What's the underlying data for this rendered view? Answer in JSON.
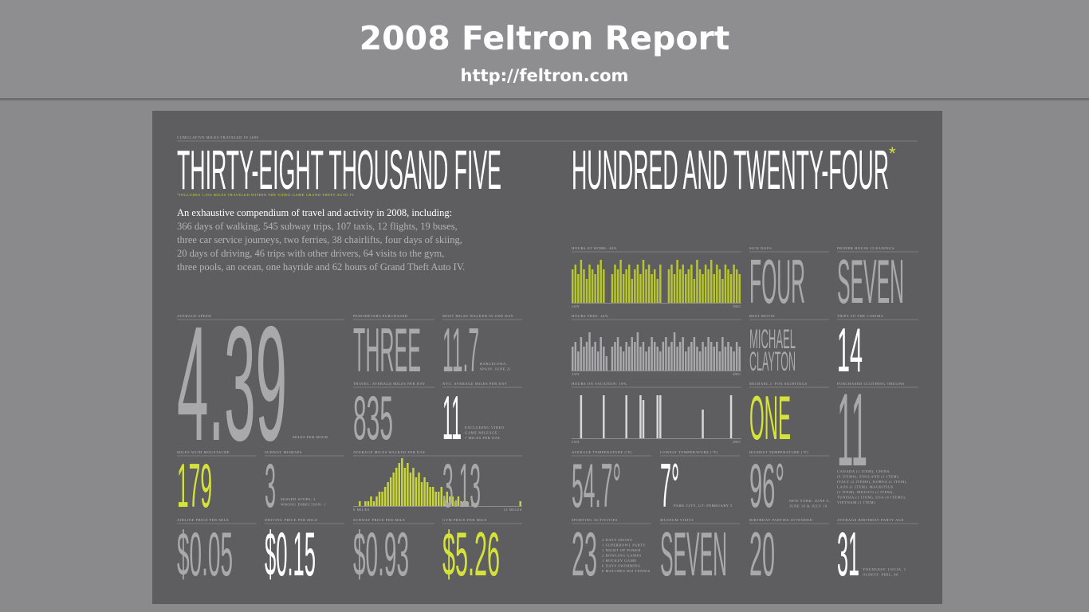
{
  "header": {
    "title": "2008 Feltron Report",
    "url": "http://feltron.com"
  },
  "poster": {
    "kicker": "CUMULATIVE MILES TRAVELED IN 2008",
    "headline_left": "THIRTY-EIGHT THOUSAND FIVE",
    "headline_right": "HUNDRED AND TWENTY-FOUR",
    "asterisk": "*",
    "footnote": "*INCLUDES 1,056 MILES TRAVELED WITHIN THE VIDEO GAME GRAND THEFT AUTO IV.",
    "intro": {
      "lead": "An exhaustive compendium of travel and activity in 2008, including:",
      "lines": [
        "366 days of walking, 545 subway trips, 107 taxis, 12 flights, 19 buses,",
        "three car service journeys, two ferries, 38 chairlifts, four days of skiing,",
        "20 days of driving, 46 trips with other drivers, 64 visits to the gym,",
        "three pools, an ocean, one hayride and 62 hours of Grand Theft Auto IV."
      ]
    },
    "stats": [
      {
        "label": "AVERAGE SPEED",
        "value": "4.39",
        "color": "#a9a8ab",
        "note": [
          "MILES PER HOUR"
        ]
      },
      {
        "label": "PEDOMETERS PURCHASED",
        "value": "THREE",
        "color": "#a9a8ab"
      },
      {
        "label": "MOST MILES WALKED IN ONE DAY",
        "value": "11.7",
        "color": "#a9a8ab",
        "note": [
          "BARCELONA,",
          "SPAIN: JUNE 21"
        ]
      },
      {
        "label": "TRAVEL: AVERAGE MILES PER DAY",
        "value": "835",
        "color": "#a9a8ab"
      },
      {
        "label": "NYC: AVERAGE MILES PER DAY",
        "value": "11",
        "color": "#ffffff",
        "note": [
          "EXCLUDING VIDEO",
          "GAME MILEAGE:",
          "7 MILES PER DAY"
        ]
      },
      {
        "label": "MILES WITH MOUSTACHE",
        "value": "179",
        "color": "#d4e23a"
      },
      {
        "label": "SUBWAY MISHAPS",
        "value": "3",
        "color": "#a9a8ab",
        "note": [
          "MISSED STOPS: 2",
          "WRONG DIRECTION: 1"
        ]
      },
      {
        "label": "AIRLINE PRICE PER MILE",
        "value": "$0.05",
        "color": "#a9a8ab"
      },
      {
        "label": "DRIVING PRICE PER MILE",
        "value": "$0.15",
        "color": "#ffffff"
      },
      {
        "label": "SUBWAY PRICE PER MILE",
        "value": "$0.93",
        "color": "#a9a8ab"
      },
      {
        "label": "GYM PRICE PER MILE",
        "value": "$5.26",
        "color": "#d4e23a"
      },
      {
        "label": "SICK DAYS",
        "value": "FOUR",
        "color": "#a9a8ab"
      },
      {
        "label": "PROPER HOUSE CLEANINGS",
        "value": "SEVEN",
        "color": "#a9a8ab"
      },
      {
        "label": "BEST MOVIE",
        "value": [
          "MICHAEL",
          "CLAYTON"
        ],
        "color": "#a9a8ab"
      },
      {
        "label": "TRIPS TO THE CINEMA",
        "value": "14",
        "color": "#ffffff"
      },
      {
        "label": "MICHAEL J. FOX SIGHTINGS",
        "value": "ONE",
        "color": "#d4e23a"
      },
      {
        "label": "PURCHASED CLOTHING ORIGINS",
        "value": "11",
        "color": "#a9a8ab",
        "note": [
          "CANADA (1 ITEM), CHINA",
          "(5 ITEMS), ENGLAND (1 ITEM),",
          "ITALY (2 ITEMS), KOREA (1 ITEM),",
          "LAOS (1 ITEM), MAURITIUS",
          "(1 ITEM), MEXICO (1 ITEM),",
          "TUNISIA (1 ITEM), USA (4 ITEMS),",
          "VIETNAM (1 ITEM)"
        ]
      },
      {
        "label": "AVERAGE TEMPERATURE (°F)",
        "value": "54.7°",
        "color": "#a9a8ab"
      },
      {
        "label": "LOWEST TEMPERATURE (°F)",
        "value": "7°",
        "color": "#ffffff",
        "note": [
          "PARK CITY, UT: FEBRUARY 5"
        ]
      },
      {
        "label": "HIGHEST TEMPERATURE (°F)",
        "value": "96°",
        "color": "#a9a8ab",
        "note": [
          "NEW YORK: JUNE 9,",
          "JUNE 10 & JULY 19"
        ]
      },
      {
        "label": "SPORTING ACTIVITIES",
        "value": "23",
        "color": "#a9a8ab",
        "note": [
          "4 DAYS SKIING",
          "1 SUPERBOWL PARTY",
          "1 NIGHT OF POKER",
          "2 BOWLING GAMES",
          "1 HOCKEY GAME",
          "6 DAYS SWIMMING",
          "8 MATCHES WII TENNIS"
        ]
      },
      {
        "label": "MUSEUM VISITS",
        "value": "SEVEN",
        "color": "#a9a8ab"
      },
      {
        "label": "BIRTHDAY PARTIES ATTENDED",
        "value": "20",
        "color": "#a9a8ab"
      },
      {
        "label": "AVERAGE BIRTHDAY PARTY AGE",
        "value": "31",
        "color": "#ffffff",
        "note": [
          "YOUNGEST: LUCIA, 1",
          "OLDEST: PHIL, 60"
        ]
      }
    ],
    "charts": [
      {
        "label": "HOURS AT WORK: 40%",
        "start": "JAN",
        "end": "DEC",
        "color": "#b8c62e",
        "values": [
          7,
          8,
          6,
          9,
          7,
          5,
          8,
          7,
          6,
          8,
          9,
          7,
          0,
          0,
          6,
          8,
          7,
          9,
          6,
          7,
          8,
          5,
          7,
          8,
          6,
          9,
          7,
          8,
          6,
          7,
          5,
          8,
          0,
          0,
          7,
          8,
          6,
          9,
          7,
          8,
          6,
          7,
          8,
          5,
          9,
          7,
          6,
          8,
          7,
          9,
          6,
          8,
          7,
          5,
          8,
          7,
          6,
          8,
          7,
          6
        ]
      },
      {
        "label": "HOURS FREE: 44%",
        "start": "JAN",
        "end": "DEC",
        "color": "#a9a8ab",
        "values": [
          5,
          6,
          4,
          7,
          5,
          6,
          8,
          5,
          6,
          4,
          7,
          5,
          3,
          0,
          5,
          6,
          7,
          5,
          4,
          6,
          5,
          7,
          6,
          8,
          5,
          6,
          4,
          5,
          7,
          6,
          5,
          4,
          6,
          7,
          5,
          6,
          8,
          5,
          6,
          7,
          4,
          5,
          6,
          7,
          5,
          4,
          6,
          5,
          7,
          6,
          5,
          6,
          4,
          7,
          5,
          6,
          5,
          4,
          6,
          5
        ]
      },
      {
        "label": "HOURS ON VACATION: 10%",
        "start": "JAN",
        "end": "DEC",
        "color": "#d8d8d8",
        "values": [
          0,
          0,
          0,
          9,
          0,
          0,
          0,
          0,
          0,
          0,
          0,
          9,
          0,
          0,
          0,
          0,
          0,
          0,
          0,
          9,
          0,
          0,
          0,
          0,
          9,
          8,
          0,
          0,
          0,
          0,
          9,
          9,
          0,
          0,
          0,
          0,
          0,
          0,
          0,
          0,
          0,
          0,
          0,
          0,
          0,
          0,
          6,
          0,
          0,
          0,
          0,
          0,
          0,
          0,
          0,
          0,
          9,
          0,
          0,
          0
        ]
      },
      {
        "label": "AVERAGE MILES WALKED PER DAY",
        "start": "0 MILES",
        "end": "12 MILES",
        "value": "3.13",
        "color": "#c9d63a",
        "values": [
          0,
          0,
          1,
          0,
          1,
          1,
          2,
          1,
          2,
          3,
          3,
          4,
          5,
          6,
          7,
          8,
          9,
          10,
          8,
          9,
          7,
          8,
          6,
          7,
          5,
          6,
          5,
          4,
          4,
          3,
          3,
          4,
          2,
          3,
          2,
          2,
          1,
          2,
          1,
          1,
          1,
          0,
          1,
          0,
          0,
          0,
          0,
          0,
          0,
          0,
          0,
          0,
          0,
          0,
          0,
          0,
          0,
          0,
          0,
          1
        ]
      }
    ]
  }
}
